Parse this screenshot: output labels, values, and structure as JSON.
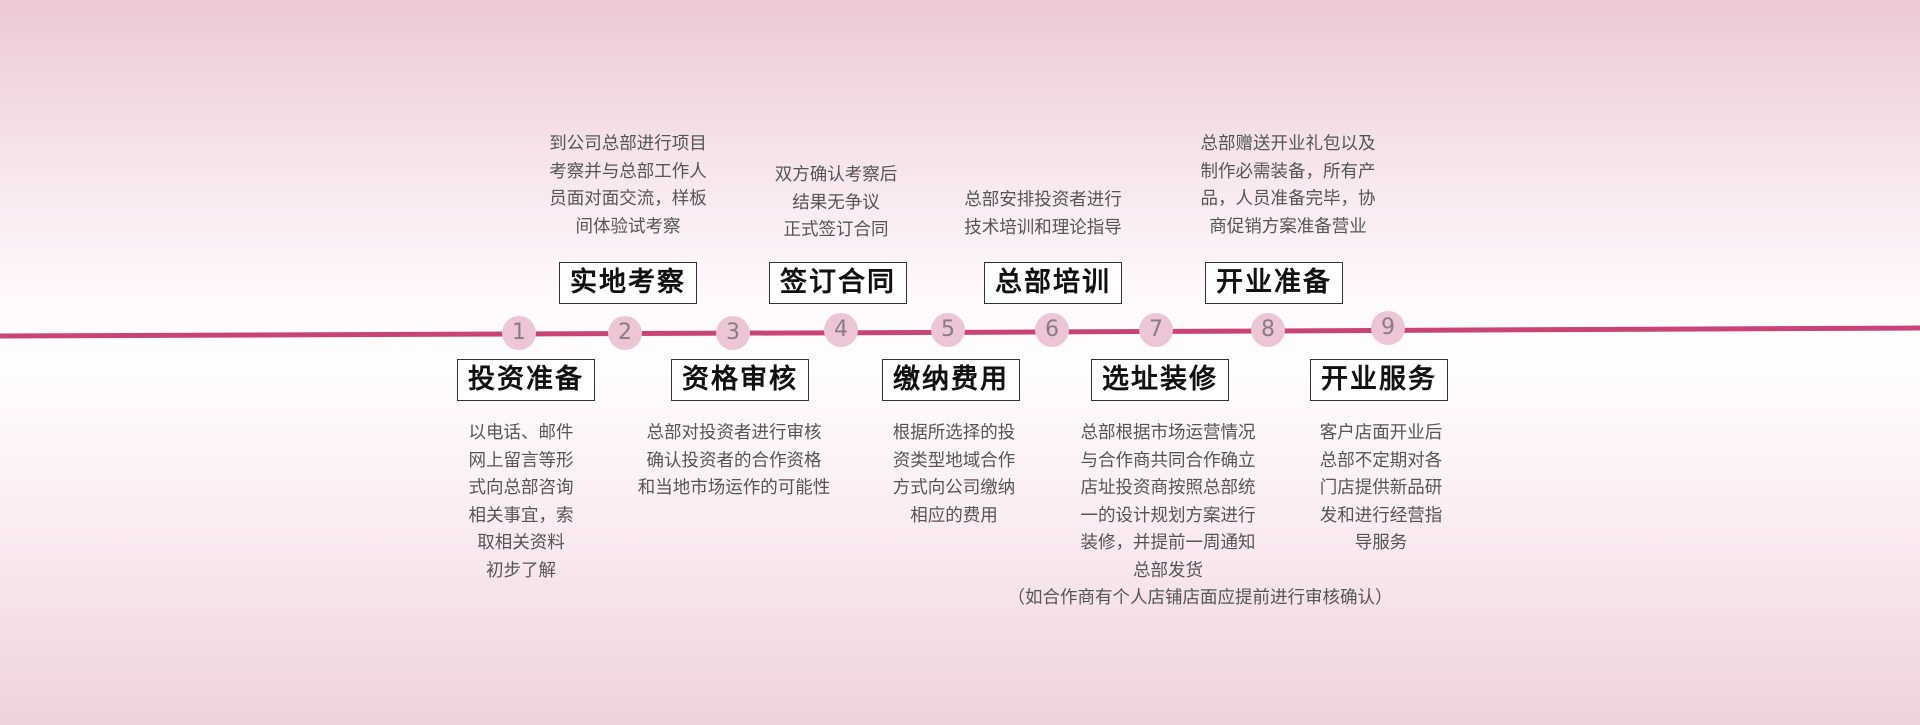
{
  "steps": [
    {
      "number": "1",
      "title": "投资准备",
      "desc": [
        "以电话、邮件",
        "网上留言等形",
        "式向总部咨询",
        "相关事宜，索",
        "取相关资料",
        "初步了解"
      ]
    },
    {
      "number": "2",
      "title": "实地考察",
      "desc": [
        "到公司总部进行项目",
        "考察并与总部工作人",
        "员面对面交流，样板",
        "间体验试考察"
      ]
    },
    {
      "number": "3",
      "title": "资格审核",
      "desc": [
        "总部对投资者进行审核",
        "确认投资者的合作资格",
        "和当地市场运作的可能性"
      ]
    },
    {
      "number": "4",
      "title": "签订合同",
      "desc": [
        "双方确认考察后",
        "结果无争议",
        "正式签订合同"
      ]
    },
    {
      "number": "5",
      "title": "缴纳费用",
      "desc": [
        "根据所选择的投",
        "资类型地域合作",
        "方式向公司缴纳",
        "相应的费用"
      ]
    },
    {
      "number": "6",
      "title": "总部培训",
      "desc": [
        "总部安排投资者进行",
        "技术培训和理论指导"
      ]
    },
    {
      "number": "7",
      "title": "选址装修",
      "desc": [
        "总部根据市场运营情况",
        "与合作商共同合作确立",
        "店址投资商按照总部统",
        "一的设计规划方案进行",
        "装修，并提前一周通知",
        "总部发货"
      ]
    },
    {
      "number": "8",
      "title": "开业准备",
      "desc": [
        "总部赠送开业礼包以及",
        "制作必需装备，所有产",
        "品，人员准备完毕，协",
        "商促销方案准备营业"
      ]
    },
    {
      "number": "9",
      "title": "开业服务",
      "desc": [
        "客户店面开业后",
        "总部不定期对各",
        "门店提供新品研",
        "发和进行经营指",
        "导服务"
      ]
    }
  ],
  "footnote": "（如合作商有个人店铺店面应提前进行审核确认）",
  "colors": {
    "line": "#c94475",
    "node_fill": "#ecc6d4",
    "node_text": "#8a7c84"
  }
}
